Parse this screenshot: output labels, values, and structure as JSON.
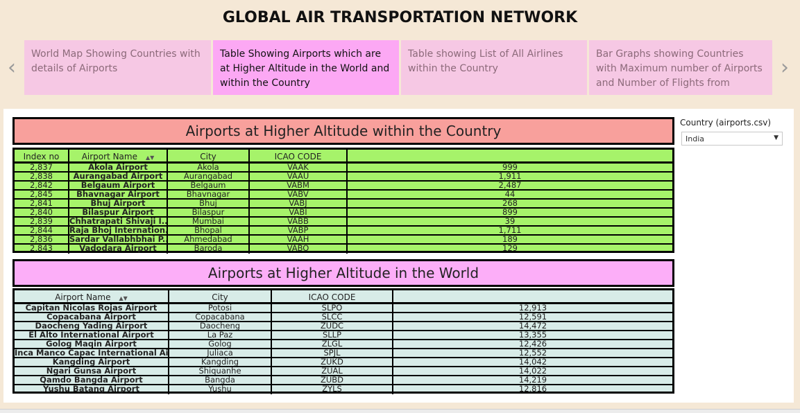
{
  "title": "GLOBAL AIR TRANSPORTATION NETWORK",
  "nav": {
    "prev_icon": "chevron-left-icon",
    "next_icon": "chevron-right-icon"
  },
  "stories": [
    {
      "label": "World Map Showing Countries with details of Airports"
    },
    {
      "label": "Table Showing Airports which are at Higher Altitude in the World and within the Country"
    },
    {
      "label": "Table showing List of All Airlines within the Country"
    },
    {
      "label": "Bar Graphs showing Countries with Maximum number of Airports and Number of Flights from"
    }
  ],
  "filter": {
    "label": "Country (airports.csv)",
    "value": "India"
  },
  "country_table": {
    "title": "Airports at Higher Altitude within the Country",
    "headers": [
      "Index no",
      "Airport Name",
      "City",
      "ICAO CODE",
      ""
    ],
    "rows": [
      [
        "2,837",
        "Akola Airport",
        "Akola",
        "VAAK",
        "999"
      ],
      [
        "2,838",
        "Aurangabad Airport",
        "Aurangabad",
        "VAAU",
        "1,911"
      ],
      [
        "2,842",
        "Belgaum Airport",
        "Belgaum",
        "VABM",
        "2,487"
      ],
      [
        "2,845",
        "Bhavnagar Airport",
        "Bhavnagar",
        "VABV",
        "44"
      ],
      [
        "2,841",
        "Bhuj Airport",
        "Bhuj",
        "VABJ",
        "268"
      ],
      [
        "2,840",
        "Bilaspur Airport",
        "Bilaspur",
        "VABI",
        "899"
      ],
      [
        "2,839",
        "Chhatrapati Shivaji I..",
        "Mumbai",
        "VABB",
        "39"
      ],
      [
        "2,844",
        "Raja Bhoj Internation..",
        "Bhopal",
        "VABP",
        "1,711"
      ],
      [
        "2,836",
        "Sardar Vallabhbhai P..",
        "Ahmedabad",
        "VAAH",
        "189"
      ],
      [
        "2,843",
        "Vadodara Airport",
        "Baroda",
        "VABO",
        "129"
      ]
    ]
  },
  "world_table": {
    "title": "Airports at Higher Altitude in the World",
    "headers": [
      "Airport Name",
      "City",
      "ICAO CODE",
      ""
    ],
    "rows": [
      [
        "Capitan Nicolas Rojas Airport",
        "Potosi",
        "SLPO",
        "12,913"
      ],
      [
        "Copacabana Airport",
        "Copacabana",
        "SLCC",
        "12,591"
      ],
      [
        "Daocheng Yading Airport",
        "Daocheng",
        "ZUDC",
        "14,472"
      ],
      [
        "El Alto International Airport",
        "La Paz",
        "SLLP",
        "13,355"
      ],
      [
        "Golog Maqin Airport",
        "Golog",
        "ZLGL",
        "12,426"
      ],
      [
        "Inca Manco Capac International Airp..",
        "Juliaca",
        "SPJL",
        "12,552"
      ],
      [
        "Kangding Airport",
        "Kangding",
        "ZUKD",
        "14,042"
      ],
      [
        "Ngari Gunsa Airport",
        "Shiquanhe",
        "ZUAL",
        "14,022"
      ],
      [
        "Qamdo Bangda Airport",
        "Bangda",
        "ZUBD",
        "14,219"
      ],
      [
        "Yushu Batang Airport",
        "Yushu",
        "ZYLS",
        "12,816"
      ]
    ]
  },
  "sort_icon": "sort-icon"
}
